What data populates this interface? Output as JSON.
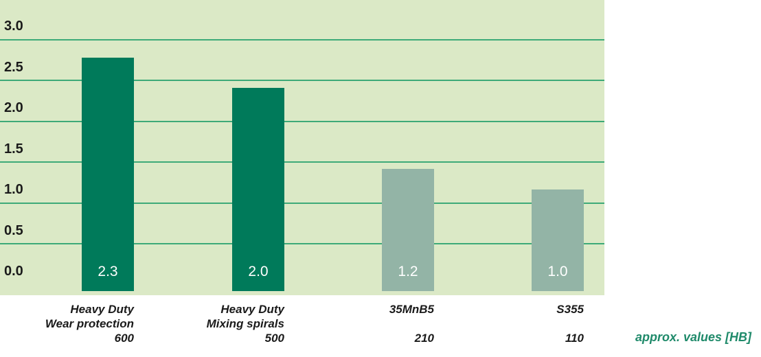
{
  "chart_data": {
    "type": "bar",
    "categories": [
      [
        "Heavy Duty",
        "Wear protection",
        "600"
      ],
      [
        "Heavy Duty",
        "Mixing spirals",
        "500"
      ],
      [
        "35MnB5",
        "",
        "210"
      ],
      [
        "S355",
        "",
        "110"
      ]
    ],
    "values": [
      2.3,
      2.0,
      1.2,
      1.0
    ],
    "value_labels": [
      "2.3",
      "2.0",
      "1.2",
      "1.0"
    ],
    "bar_colors": [
      "#007a5a",
      "#007a5a",
      "#93b4a6",
      "#93b4a6"
    ],
    "yticks": [
      "0.0",
      "0.5",
      "1.0",
      "1.5",
      "2.0",
      "2.5",
      "3.0"
    ],
    "ylim": [
      0,
      3.0
    ],
    "grid": true,
    "title": "",
    "xlabel": "",
    "ylabel": "",
    "unit_note": "approx. values [HB]"
  },
  "colors": {
    "plot_background": "#dbe9c6",
    "gridline": "#3daa78",
    "accent_text": "#1f8a6a"
  }
}
